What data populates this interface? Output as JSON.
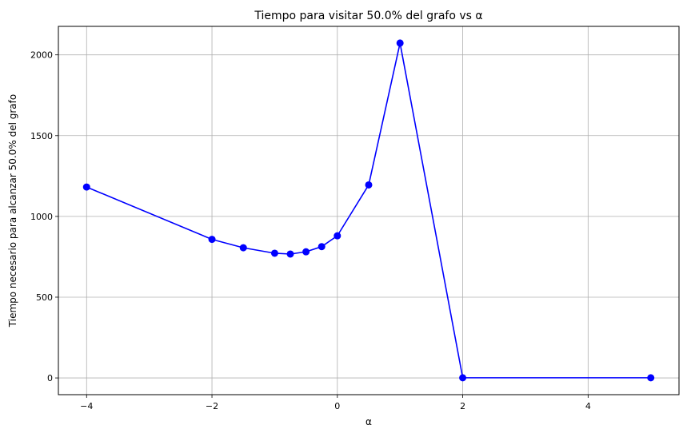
{
  "chart_data": {
    "type": "line",
    "title": "Tiempo para visitar 50.0% del grafo vs α",
    "xlabel": "α",
    "ylabel": "Tiempo necesario para alcanzar 50.0% del grafo",
    "xlim": [
      -4.45,
      5.45
    ],
    "ylim": [
      -103.5,
      2176.5
    ],
    "xticks": [
      -4,
      -2,
      0,
      2,
      4
    ],
    "xtick_labels": [
      "−4",
      "−2",
      "0",
      "2",
      "4"
    ],
    "yticks": [
      0,
      500,
      1000,
      1500,
      2000
    ],
    "ytick_labels": [
      "0",
      "500",
      "1000",
      "1500",
      "2000"
    ],
    "grid": true,
    "series": [
      {
        "color": "#0000ff",
        "marker": "circle",
        "points": [
          {
            "x": -4,
            "y": 1182
          },
          {
            "x": -2,
            "y": 858
          },
          {
            "x": -1.5,
            "y": 806
          },
          {
            "x": -1,
            "y": 772
          },
          {
            "x": -0.75,
            "y": 767
          },
          {
            "x": -0.5,
            "y": 781
          },
          {
            "x": -0.25,
            "y": 813
          },
          {
            "x": 0,
            "y": 880
          },
          {
            "x": 0.5,
            "y": 1195
          },
          {
            "x": 1,
            "y": 2073
          },
          {
            "x": 2,
            "y": 1
          },
          {
            "x": 5,
            "y": 1
          }
        ]
      }
    ]
  }
}
